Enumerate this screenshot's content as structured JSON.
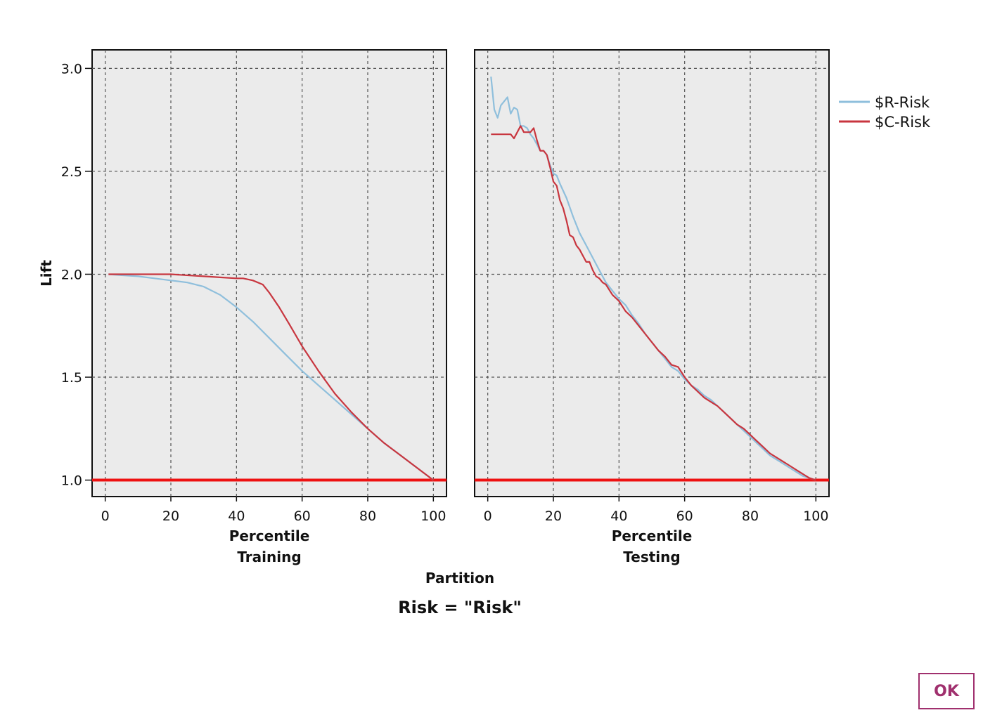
{
  "chart_data": {
    "type": "line",
    "title": "Risk = \"Risk\"",
    "ylabel": "Lift",
    "xlabel": "Percentile",
    "facet_label": "Partition",
    "ylim": [
      0.92,
      3.09
    ],
    "xlim": [
      -4,
      104
    ],
    "yticks": [
      1.0,
      1.5,
      2.0,
      2.5,
      3.0
    ],
    "ytick_labels": [
      "1.0",
      "1.5",
      "2.0",
      "2.5",
      "3.0"
    ],
    "xticks": [
      0,
      20,
      40,
      60,
      80,
      100
    ],
    "xtick_labels": [
      "0",
      "20",
      "40",
      "60",
      "80",
      "100"
    ],
    "grid": true,
    "legend": {
      "placement": "right",
      "entries": [
        {
          "name": "$R-Risk",
          "color": "#8fbfdc"
        },
        {
          "name": "$C-Risk",
          "color": "#c8363f"
        }
      ]
    },
    "baseline": {
      "y": 1.0,
      "color": "#ee1111"
    },
    "panels": [
      {
        "label": "Training",
        "series": [
          {
            "name": "$R-Risk",
            "color": "#8fbfdc",
            "x": [
              1,
              5,
              10,
              15,
              20,
              25,
              30,
              35,
              40,
              45,
              50,
              55,
              60,
              65,
              70,
              75,
              80,
              85,
              90,
              95,
              100
            ],
            "y": [
              2.0,
              1.995,
              1.99,
              1.98,
              1.97,
              1.96,
              1.94,
              1.9,
              1.84,
              1.77,
              1.69,
              1.61,
              1.53,
              1.46,
              1.39,
              1.32,
              1.25,
              1.18,
              1.12,
              1.06,
              1.0
            ]
          },
          {
            "name": "$C-Risk",
            "color": "#c8363f",
            "x": [
              1,
              10,
              20,
              30,
              35,
              40,
              42,
              45,
              48,
              50,
              53,
              56,
              60,
              65,
              70,
              75,
              80,
              85,
              90,
              95,
              100
            ],
            "y": [
              2.0,
              2.0,
              2.0,
              1.99,
              1.985,
              1.98,
              1.98,
              1.97,
              1.95,
              1.91,
              1.84,
              1.76,
              1.65,
              1.53,
              1.42,
              1.33,
              1.25,
              1.18,
              1.12,
              1.06,
              1.0
            ]
          }
        ]
      },
      {
        "label": "Testing",
        "series": [
          {
            "name": "$R-Risk",
            "color": "#8fbfdc",
            "x": [
              1,
              2,
              3,
              4,
              5,
              6,
              7,
              8,
              9,
              10,
              11,
              12,
              13,
              14,
              15,
              16,
              17,
              18,
              19,
              20,
              21,
              22,
              24,
              26,
              28,
              30,
              32,
              34,
              36,
              38,
              40,
              42,
              44,
              46,
              48,
              50,
              52,
              54,
              56,
              58,
              60,
              62,
              64,
              66,
              68,
              70,
              72,
              74,
              76,
              78,
              80,
              82,
              84,
              86,
              88,
              90,
              92,
              94,
              96,
              98,
              100
            ],
            "y": [
              2.96,
              2.8,
              2.76,
              2.82,
              2.84,
              2.86,
              2.78,
              2.81,
              2.8,
              2.72,
              2.72,
              2.71,
              2.68,
              2.66,
              2.63,
              2.6,
              2.6,
              2.58,
              2.53,
              2.49,
              2.48,
              2.44,
              2.37,
              2.28,
              2.2,
              2.14,
              2.08,
              2.02,
              1.96,
              1.92,
              1.88,
              1.85,
              1.8,
              1.76,
              1.71,
              1.67,
              1.63,
              1.59,
              1.55,
              1.53,
              1.49,
              1.46,
              1.44,
              1.41,
              1.39,
              1.36,
              1.33,
              1.3,
              1.27,
              1.24,
              1.21,
              1.18,
              1.15,
              1.12,
              1.1,
              1.08,
              1.06,
              1.04,
              1.02,
              1.01,
              1.0
            ]
          },
          {
            "name": "$C-Risk",
            "color": "#c8363f",
            "x": [
              1,
              3,
              5,
              7,
              8,
              9,
              10,
              11,
              12,
              13,
              14,
              15,
              16,
              17,
              18,
              19,
              20,
              21,
              22,
              23,
              24,
              25,
              26,
              27,
              28,
              29,
              30,
              31,
              32,
              33,
              34,
              35,
              36,
              38,
              40,
              42,
              44,
              46,
              48,
              50,
              52,
              54,
              56,
              58,
              60,
              62,
              64,
              66,
              68,
              70,
              72,
              74,
              76,
              78,
              80,
              82,
              84,
              86,
              88,
              90,
              92,
              94,
              96,
              98,
              100
            ],
            "y": [
              2.68,
              2.68,
              2.68,
              2.68,
              2.66,
              2.69,
              2.72,
              2.69,
              2.69,
              2.69,
              2.71,
              2.65,
              2.6,
              2.6,
              2.58,
              2.52,
              2.45,
              2.43,
              2.36,
              2.32,
              2.26,
              2.19,
              2.18,
              2.14,
              2.12,
              2.09,
              2.06,
              2.06,
              2.02,
              1.99,
              1.98,
              1.96,
              1.95,
              1.9,
              1.87,
              1.82,
              1.79,
              1.75,
              1.71,
              1.67,
              1.63,
              1.6,
              1.56,
              1.55,
              1.5,
              1.46,
              1.43,
              1.4,
              1.38,
              1.36,
              1.33,
              1.3,
              1.27,
              1.25,
              1.22,
              1.19,
              1.16,
              1.13,
              1.11,
              1.09,
              1.07,
              1.05,
              1.03,
              1.01,
              1.0
            ]
          }
        ]
      }
    ]
  },
  "dialog": {
    "ok_label": "OK"
  }
}
